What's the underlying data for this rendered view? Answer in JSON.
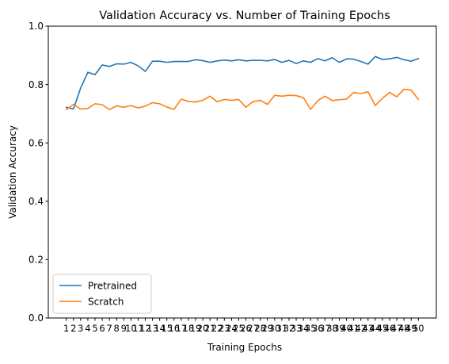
{
  "chart_data": {
    "type": "line",
    "title": "Validation Accuracy vs. Number of Training Epochs",
    "xlabel": "Training Epochs",
    "ylabel": "Validation Accuracy",
    "ylim": [
      0,
      1.0
    ],
    "yticks": [
      "0.0",
      "0.2",
      "0.4",
      "0.6",
      "0.8",
      "1.0"
    ],
    "x": [
      1,
      2,
      3,
      4,
      5,
      6,
      7,
      8,
      9,
      10,
      11,
      12,
      13,
      14,
      15,
      16,
      17,
      18,
      19,
      20,
      21,
      22,
      23,
      24,
      25,
      26,
      27,
      28,
      29,
      30,
      31,
      32,
      33,
      34,
      35,
      36,
      37,
      38,
      39,
      40,
      41,
      42,
      43,
      44,
      45,
      46,
      47,
      48,
      49,
      50
    ],
    "legend_position": "lower-left",
    "grid": false,
    "series": [
      {
        "name": "Pretrained",
        "color": "#1f77b4",
        "values": [
          0.722,
          0.716,
          0.788,
          0.842,
          0.834,
          0.867,
          0.862,
          0.871,
          0.87,
          0.876,
          0.864,
          0.845,
          0.88,
          0.88,
          0.876,
          0.879,
          0.879,
          0.879,
          0.885,
          0.882,
          0.876,
          0.881,
          0.884,
          0.881,
          0.885,
          0.881,
          0.883,
          0.883,
          0.881,
          0.886,
          0.876,
          0.883,
          0.872,
          0.881,
          0.876,
          0.889,
          0.881,
          0.892,
          0.876,
          0.888,
          0.887,
          0.879,
          0.87,
          0.896,
          0.886,
          0.888,
          0.893,
          0.885,
          0.88,
          0.889
        ]
      },
      {
        "name": "Scratch",
        "color": "#ff7f0e",
        "values": [
          0.714,
          0.732,
          0.716,
          0.718,
          0.734,
          0.731,
          0.714,
          0.727,
          0.722,
          0.728,
          0.72,
          0.726,
          0.738,
          0.734,
          0.723,
          0.715,
          0.75,
          0.742,
          0.74,
          0.746,
          0.76,
          0.741,
          0.749,
          0.746,
          0.749,
          0.722,
          0.742,
          0.746,
          0.732,
          0.763,
          0.76,
          0.763,
          0.762,
          0.755,
          0.715,
          0.745,
          0.76,
          0.745,
          0.748,
          0.75,
          0.773,
          0.769,
          0.775,
          0.728,
          0.753,
          0.773,
          0.758,
          0.784,
          0.781,
          0.749
        ]
      }
    ]
  }
}
